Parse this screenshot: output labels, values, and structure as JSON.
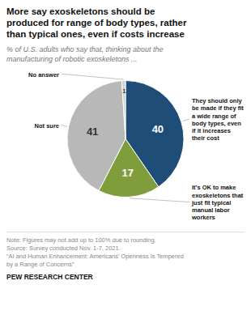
{
  "chart_data": {
    "type": "pie",
    "title": "More say exoskeletons should be\nproduced for range of body types, rather\nthan typical ones, even if costs increase",
    "subtitle": "% of U.S. adults who say that, thinking about the\nmanufacturing of robotic exoskeletons ...",
    "categories": [
      "They should only\nbe made if they fit\na wide range of\nbody types, even\nif it increases\ntheir cost",
      "It’s OK to make\nexoskeletons that\njust fit typical\nmanual labor\nworkers",
      "Not sure",
      "No answer"
    ],
    "values": [
      40,
      17,
      41,
      1
    ],
    "colors": [
      "#1e4d78",
      "#7f9e3b",
      "#b8b8b8",
      "#d0d0d0"
    ],
    "data_labels": true,
    "note": "Note: Figures may not add up to 100% due to rounding.\nSource: Survey conducted Nov. 1-7, 2021.\n“AI and Human Enhancement: Americans’ Openness Is Tempered\nby a Range of Concerns”",
    "source": "PEW RESEARCH CENTER"
  }
}
